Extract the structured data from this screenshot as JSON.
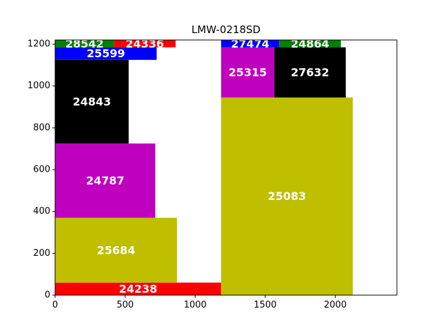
{
  "chart_data": {
    "type": "rectangle-packing",
    "title": "LMW-0218SD",
    "xlim": [
      0,
      2440
    ],
    "ylim": [
      0,
      1220
    ],
    "x_ticks": [
      0,
      500,
      1000,
      1500,
      2000
    ],
    "y_ticks": [
      0,
      200,
      400,
      600,
      800,
      1000,
      1200
    ],
    "grid": false,
    "colors": {
      "red": "#ff0000",
      "olive": "#bfbf00",
      "magenta": "#bf00bf",
      "black": "#000000",
      "blue": "#0000ff",
      "green": "#008000"
    },
    "pieces": [
      {
        "label": "24238",
        "x0": 0,
        "x1": 1185,
        "y0": 0,
        "y1": 60,
        "color": "red"
      },
      {
        "label": "25684",
        "x0": 0,
        "x1": 870,
        "y0": 60,
        "y1": 370,
        "color": "olive"
      },
      {
        "label": "24787",
        "x0": 0,
        "x1": 715,
        "y0": 370,
        "y1": 725,
        "color": "magenta"
      },
      {
        "label": "24843",
        "x0": 0,
        "x1": 525,
        "y0": 725,
        "y1": 1125,
        "color": "black"
      },
      {
        "label": "25599",
        "x0": 0,
        "x1": 725,
        "y0": 1125,
        "y1": 1185,
        "color": "blue"
      },
      {
        "label": "28542",
        "x0": 0,
        "x1": 420,
        "y0": 1185,
        "y1": 1220,
        "color": "green"
      },
      {
        "label": "24336",
        "x0": 420,
        "x1": 860,
        "y0": 1185,
        "y1": 1220,
        "color": "red"
      },
      {
        "label": "25083",
        "x0": 1185,
        "x1": 2125,
        "y0": 0,
        "y1": 945,
        "color": "olive"
      },
      {
        "label": "25315",
        "x0": 1185,
        "x1": 1565,
        "y0": 945,
        "y1": 1185,
        "color": "magenta"
      },
      {
        "label": "27632",
        "x0": 1565,
        "x1": 2075,
        "y0": 945,
        "y1": 1185,
        "color": "black"
      },
      {
        "label": "27474",
        "x0": 1185,
        "x1": 1600,
        "y0": 1185,
        "y1": 1220,
        "color": "blue"
      },
      {
        "label": "24864",
        "x0": 1600,
        "x1": 2040,
        "y0": 1185,
        "y1": 1220,
        "color": "green"
      }
    ]
  }
}
